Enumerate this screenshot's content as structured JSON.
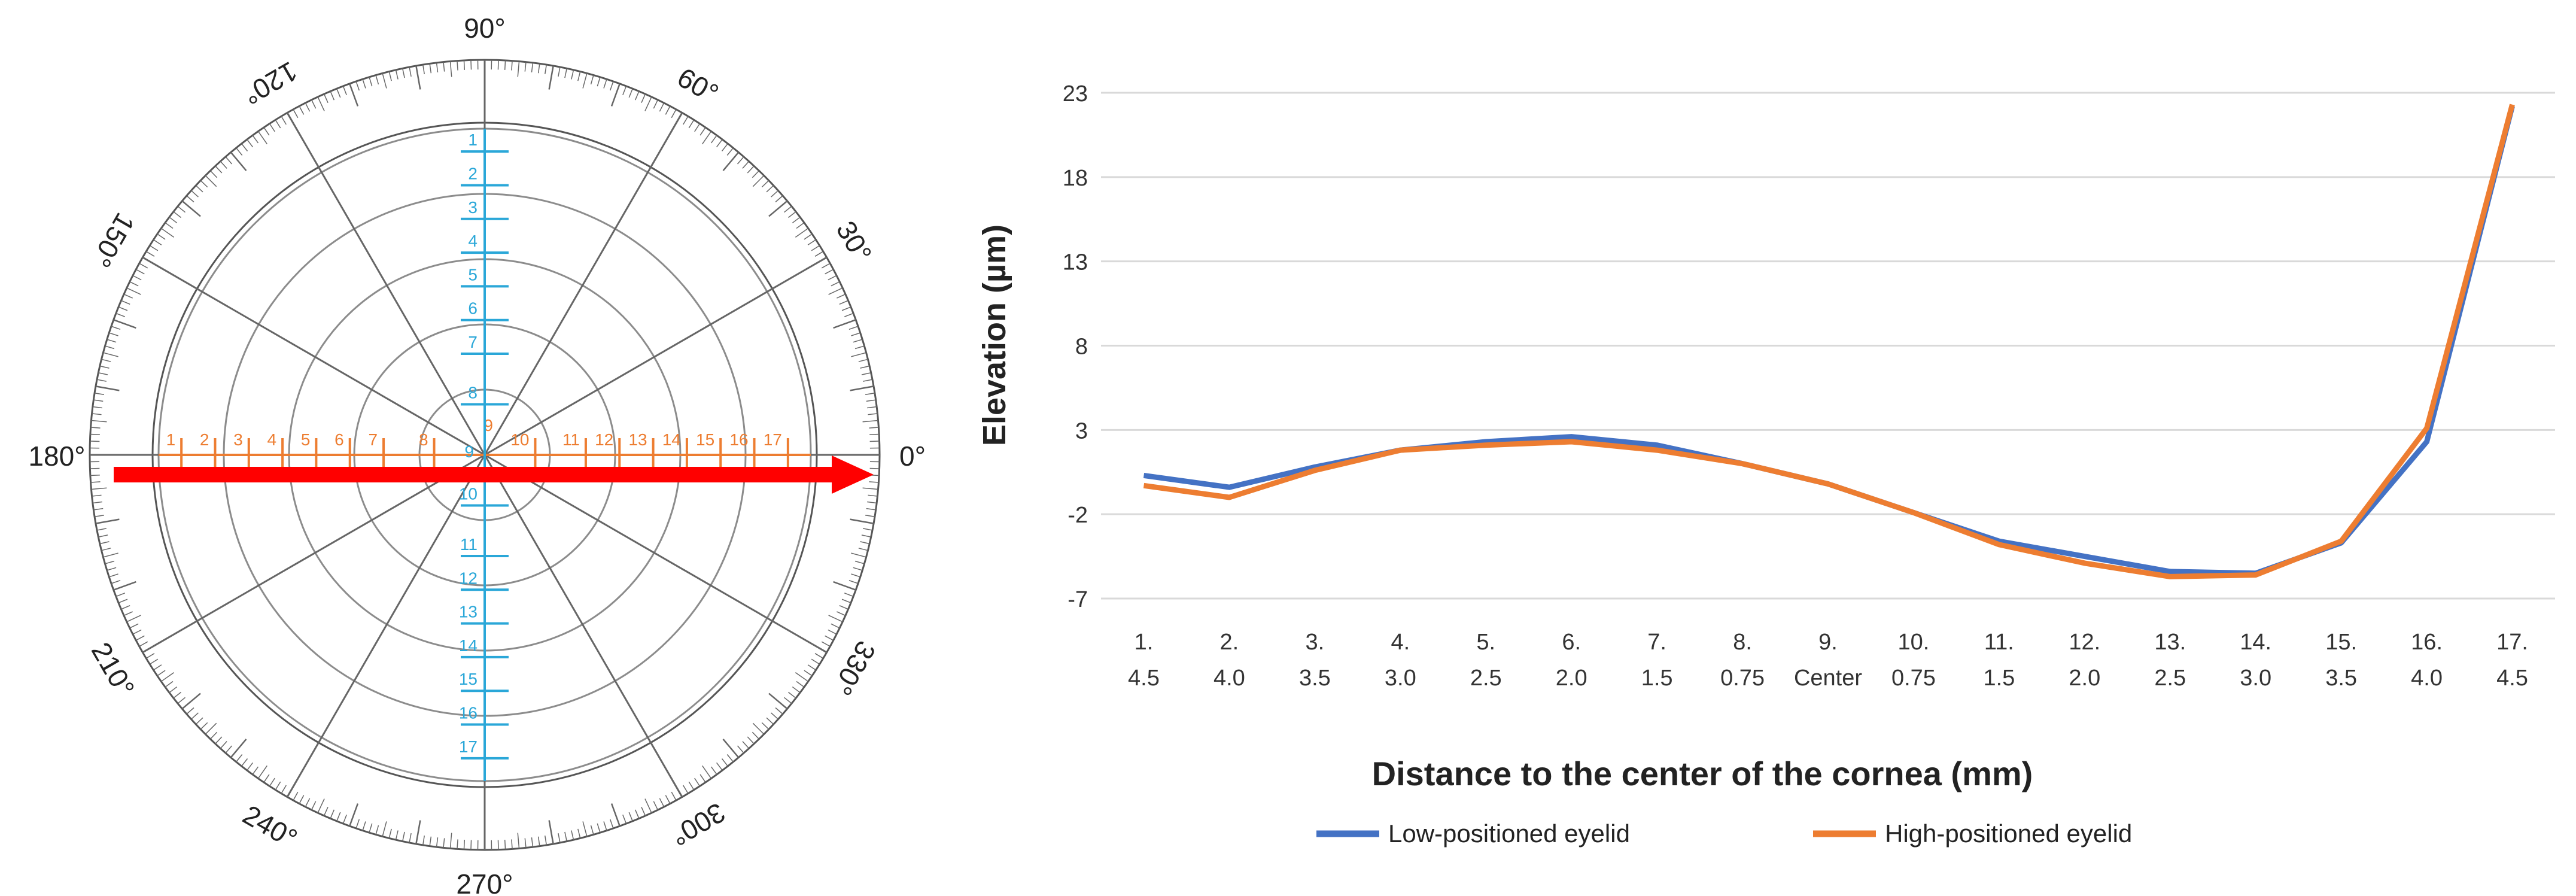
{
  "colors": {
    "orange": "#ed7d31",
    "blue": "#4472c4",
    "cyan": "#2aa7d8",
    "red": "#ff0000",
    "ring": "#8c8c8c",
    "grid": "#d9d9d9"
  },
  "protractor": {
    "angle_labels": [
      "0°",
      "30°",
      "60°",
      "90°",
      "120°",
      "150°",
      "180°",
      "210°",
      "240°",
      "270°",
      "300°",
      "330°"
    ],
    "angles": [
      0,
      30,
      60,
      90,
      120,
      150,
      180,
      210,
      240,
      270,
      300,
      330
    ],
    "rings": 5,
    "horizontal_points": {
      "labels": [
        "1",
        "2",
        "3",
        "4",
        "5",
        "6",
        "7",
        "8",
        "9",
        "10",
        "11",
        "12",
        "13",
        "14",
        "15",
        "16",
        "17"
      ],
      "offsets_mm": [
        -4.5,
        -4.0,
        -3.5,
        -3.0,
        -2.5,
        -2.0,
        -1.5,
        -0.75,
        0,
        0.75,
        1.5,
        2.0,
        2.5,
        3.0,
        3.5,
        4.0,
        4.5
      ]
    },
    "vertical_points": {
      "labels": [
        "1",
        "2",
        "3",
        "4",
        "5",
        "6",
        "7",
        "8",
        "9",
        "10",
        "11",
        "12",
        "13",
        "14",
        "15",
        "16",
        "17"
      ],
      "offsets_mm": [
        4.5,
        4.0,
        3.5,
        3.0,
        2.5,
        2.0,
        1.5,
        0.75,
        0,
        -0.75,
        -1.5,
        -2.0,
        -2.5,
        -3.0,
        -3.5,
        -4.0,
        -4.5
      ]
    }
  },
  "chart_data": {
    "type": "line",
    "title": "",
    "xlabel": "Distance to the center of the cornea (mm)",
    "ylabel": "Elevation (µm)",
    "ylim": [
      -7,
      23
    ],
    "yticks": [
      -7,
      -2,
      3,
      8,
      13,
      18,
      23
    ],
    "grid": true,
    "legend_position": "bottom",
    "categories": [
      [
        "1.",
        "4.5"
      ],
      [
        "2.",
        "4.0"
      ],
      [
        "3.",
        "3.5"
      ],
      [
        "4.",
        "3.0"
      ],
      [
        "5.",
        "2.5"
      ],
      [
        "6.",
        "2.0"
      ],
      [
        "7.",
        "1.5"
      ],
      [
        "8.",
        "0.75"
      ],
      [
        "9.",
        "Center"
      ],
      [
        "10.",
        "0.75"
      ],
      [
        "11.",
        "1.5"
      ],
      [
        "12.",
        "2.0"
      ],
      [
        "13.",
        "2.5"
      ],
      [
        "14.",
        "3.0"
      ],
      [
        "15.",
        "3.5"
      ],
      [
        "16.",
        "4.0"
      ],
      [
        "17.",
        "4.5"
      ]
    ],
    "series": [
      {
        "name": "Low-positioned eyelid",
        "color": "#4472c4",
        "values": [
          0.3,
          -0.4,
          0.8,
          1.8,
          2.3,
          2.6,
          2.1,
          1.0,
          -0.2,
          -1.9,
          -3.6,
          -4.5,
          -5.4,
          -5.5,
          -3.7,
          2.3,
          22.2
        ]
      },
      {
        "name": "High-positioned eyelid",
        "color": "#ed7d31",
        "values": [
          -0.3,
          -1.0,
          0.6,
          1.8,
          2.1,
          2.3,
          1.8,
          1.0,
          -0.2,
          -1.9,
          -3.8,
          -4.9,
          -5.7,
          -5.6,
          -3.6,
          3.1,
          22.3
        ]
      }
    ]
  }
}
